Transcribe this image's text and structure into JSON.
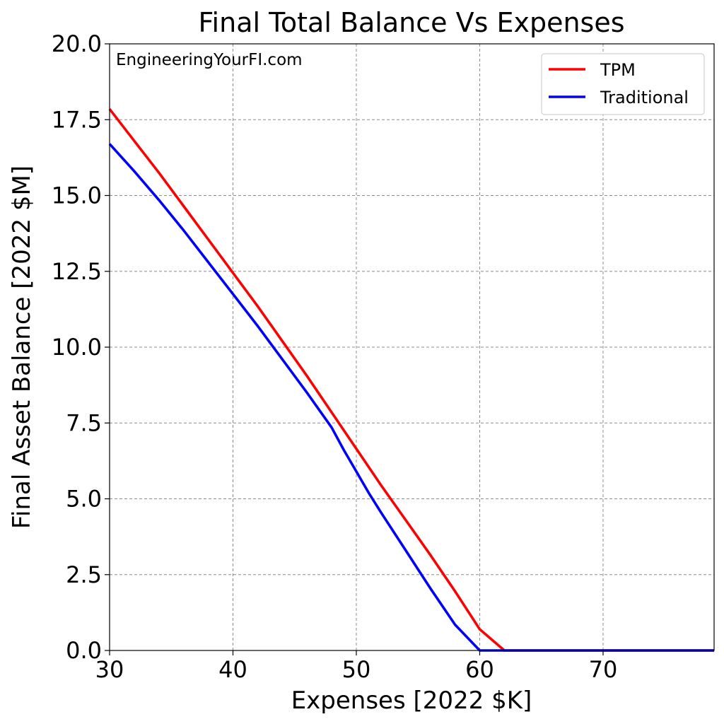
{
  "chart_data": {
    "type": "line",
    "title": "Final Total Balance Vs Expenses",
    "xlabel": "Expenses [2022 $K]",
    "ylabel": "Final Asset Balance [2022 $M]",
    "annotation": "EngineeringYourFI.com",
    "xlim": [
      30,
      79
    ],
    "ylim": [
      0,
      20
    ],
    "xticks": [
      30,
      40,
      50,
      60,
      70
    ],
    "xtick_labels": [
      "30",
      "40",
      "50",
      "60",
      "70"
    ],
    "yticks": [
      0,
      2.5,
      5,
      7.5,
      10,
      12.5,
      15,
      17.5,
      20
    ],
    "ytick_labels": [
      "0.0",
      "2.5",
      "5.0",
      "7.5",
      "10.0",
      "12.5",
      "15.0",
      "17.5",
      "20.0"
    ],
    "grid": true,
    "legend_position": "top-right",
    "series": [
      {
        "name": "TPM",
        "color": "#ff0000",
        "x": [
          30,
          32,
          34,
          36,
          38,
          40,
          42,
          44,
          46,
          48,
          50,
          52,
          54,
          56,
          58,
          60,
          62,
          64,
          65,
          66,
          67,
          68,
          70,
          72,
          74,
          76,
          79
        ],
        "y": [
          17.85,
          16.8,
          15.75,
          14.65,
          13.55,
          12.45,
          11.35,
          10.2,
          9.05,
          7.85,
          6.65,
          5.45,
          4.3,
          3.15,
          1.95,
          0.7,
          0.0,
          0.0,
          0.0,
          0.0,
          0.0,
          0.0,
          0.0,
          0.0,
          0.0,
          0.0,
          0.0
        ]
      },
      {
        "name": "Traditional",
        "color": "#0000ff",
        "x": [
          30,
          32,
          34,
          36,
          38,
          40,
          42,
          44,
          46,
          48,
          49,
          50,
          51,
          52,
          54,
          56,
          58,
          60,
          62,
          64,
          65,
          66,
          67,
          68,
          70,
          72,
          74,
          76,
          79
        ],
        "y": [
          16.7,
          15.8,
          14.85,
          13.85,
          12.8,
          11.75,
          10.7,
          9.6,
          8.5,
          7.35,
          6.6,
          5.9,
          5.2,
          4.55,
          3.3,
          2.05,
          0.85,
          0.0,
          0.0,
          0.0,
          0.0,
          0.0,
          0.0,
          0.0,
          0.0,
          0.0,
          0.0,
          0.0,
          0.0
        ]
      }
    ]
  }
}
